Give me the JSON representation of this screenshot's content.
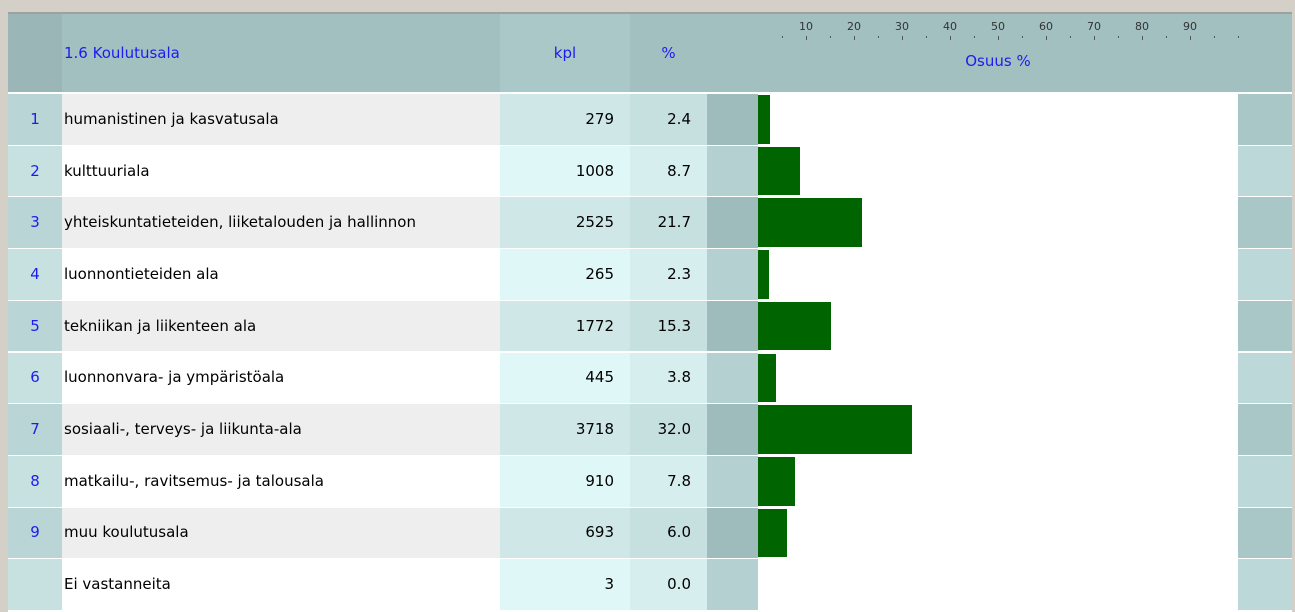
{
  "table": {
    "header": {
      "title": "1.6 Koulutusala",
      "kpl": "kpl",
      "pct": "%"
    },
    "scale": {
      "label": "Osuus %",
      "xlim": [
        0,
        100
      ],
      "ticks": [
        10,
        20,
        30,
        40,
        50,
        60,
        70,
        80,
        90
      ]
    },
    "rows": [
      {
        "num": "1",
        "label": "humanistinen ja kasvatusala",
        "kpl": 279,
        "pct": 2.4,
        "pct_label": "2.4"
      },
      {
        "num": "2",
        "label": "kulttuuriala",
        "kpl": 1008,
        "pct": 8.7,
        "pct_label": "8.7"
      },
      {
        "num": "3",
        "label": "yhteiskuntatieteiden, liiketalouden ja hallinnon",
        "kpl": 2525,
        "pct": 21.7,
        "pct_label": "21.7"
      },
      {
        "num": "4",
        "label": "luonnontieteiden ala",
        "kpl": 265,
        "pct": 2.3,
        "pct_label": "2.3"
      },
      {
        "num": "5",
        "label": "tekniikan ja liikenteen ala",
        "kpl": 1772,
        "pct": 15.3,
        "pct_label": "15.3"
      },
      {
        "num": "6",
        "label": "luonnonvara- ja ympäristöala",
        "kpl": 445,
        "pct": 3.8,
        "pct_label": "3.8"
      },
      {
        "num": "7",
        "label": "sosiaali-, terveys- ja liikunta-ala",
        "kpl": 3718,
        "pct": 32.0,
        "pct_label": "32.0"
      },
      {
        "num": "8",
        "label": "matkailu-, ravitsemus- ja talousala",
        "kpl": 910,
        "pct": 7.8,
        "pct_label": "7.8"
      },
      {
        "num": "9",
        "label": "muu koulutusala",
        "kpl": 693,
        "pct": 6.0,
        "pct_label": "6.0"
      },
      {
        "label": "Ei vastanneita",
        "kpl": 3,
        "pct": 0.0,
        "pct_label": "0.0"
      }
    ]
  }
}
